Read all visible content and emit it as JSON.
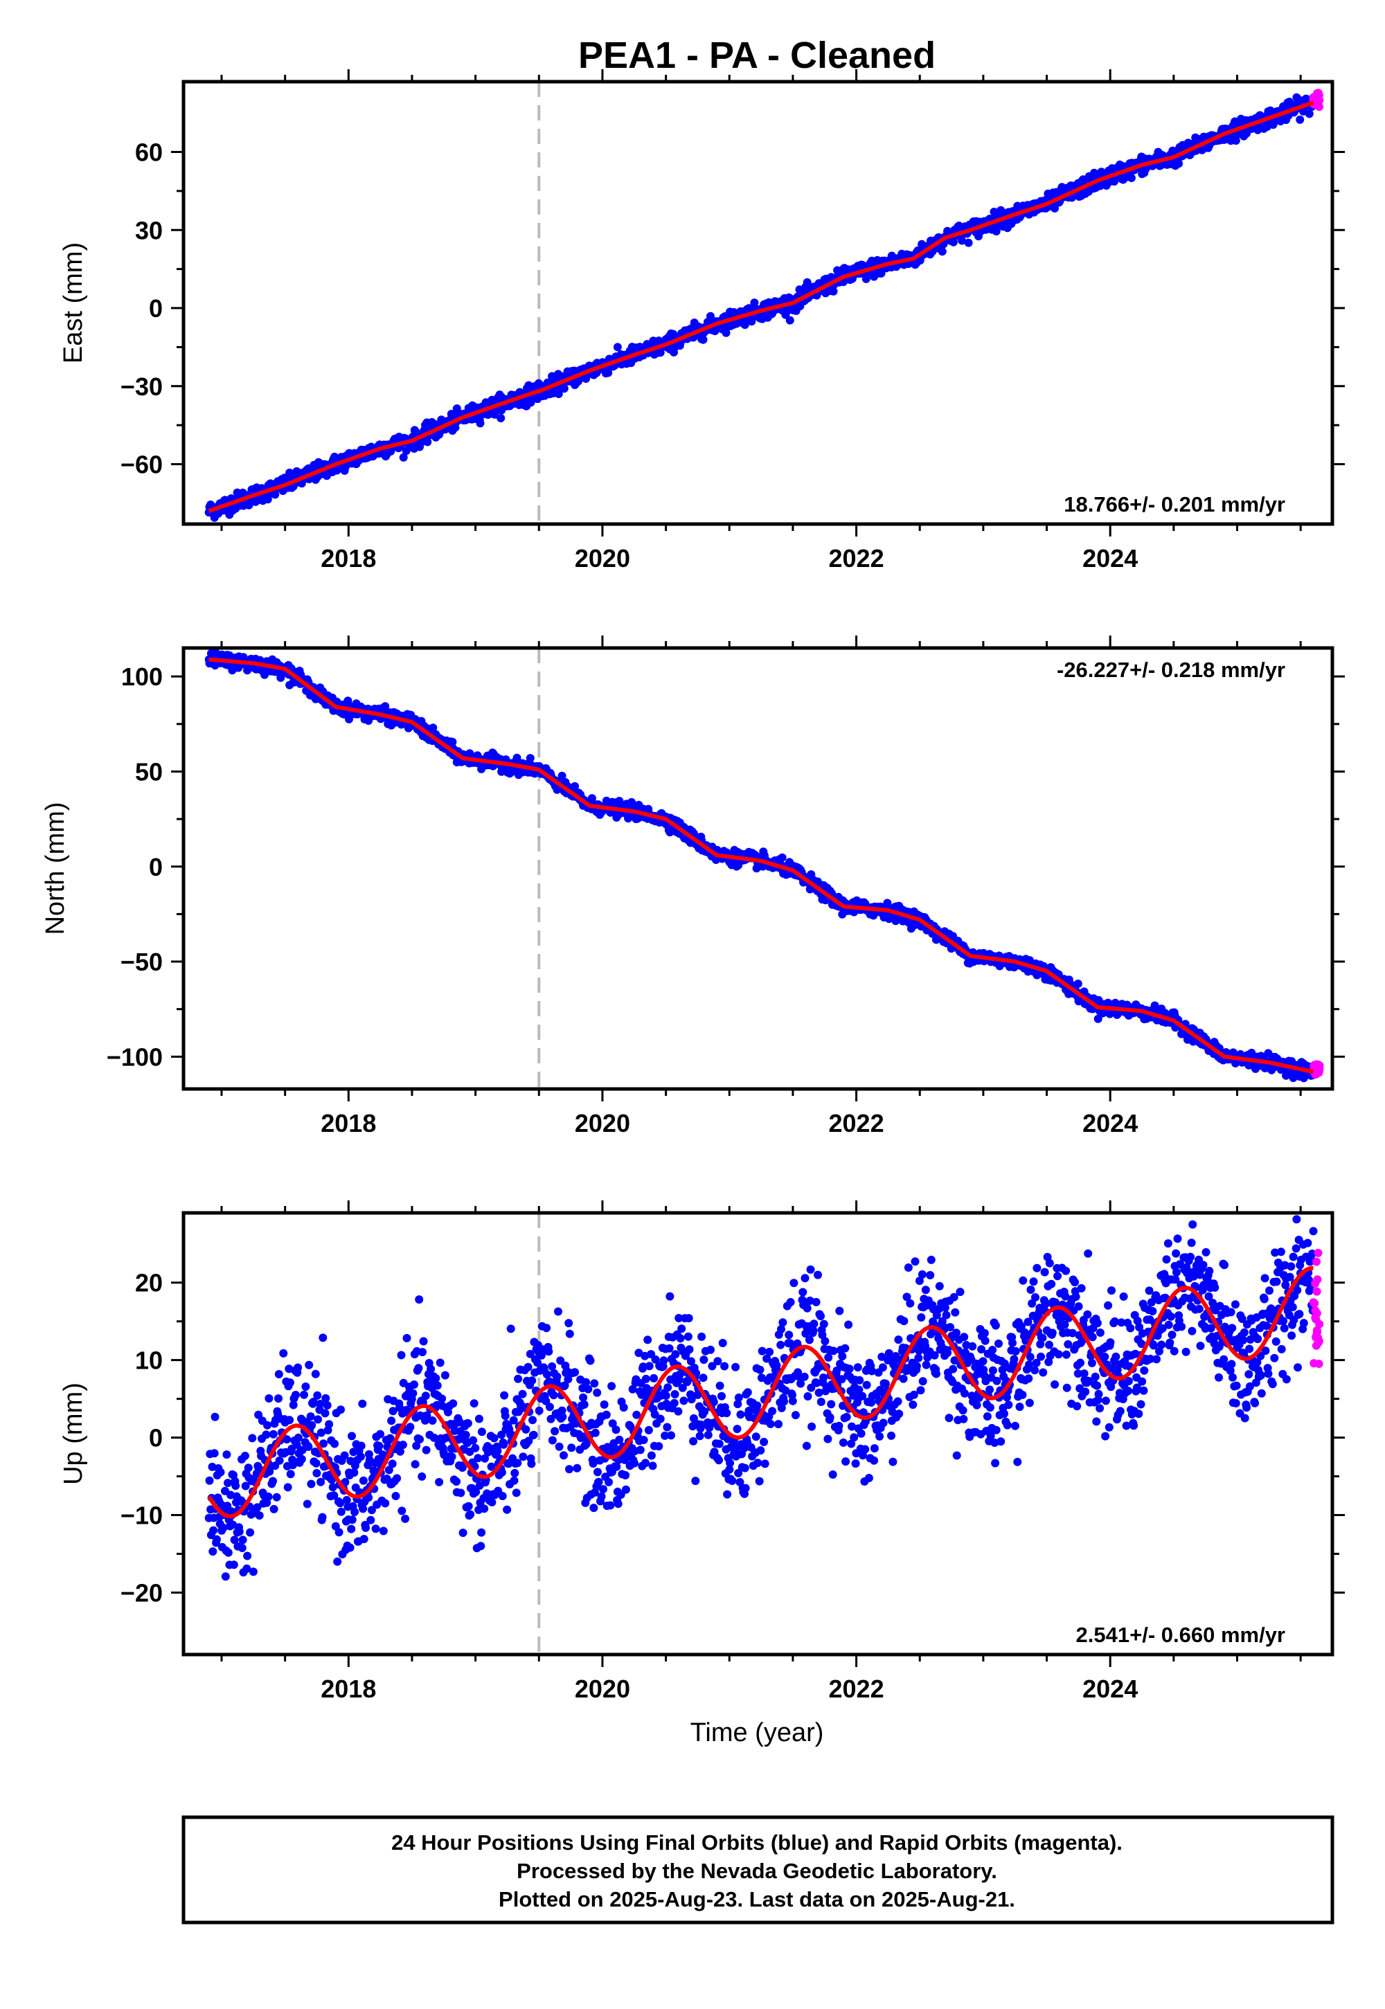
{
  "title": "PEA1  - PA - Cleaned",
  "xlabel": "Time (year)",
  "footer": {
    "line1": "24 Hour Positions Using Final Orbits (blue) and Rapid Orbits (magenta).",
    "line2": "Processed by the Nevada Geodetic Laboratory.",
    "line3": "Plotted on 2025-Aug-23. Last data on 2025-Aug-21."
  },
  "colors": {
    "final": "#0000ff",
    "rapid": "#ff00ff",
    "model": "#ff0000",
    "event_line": "#bbbbbb"
  },
  "chart_data": [
    {
      "type": "scatter",
      "id": "east",
      "ylabel": "East (mm)",
      "rate": "18.766+/- 0.201 mm/yr",
      "xlim": [
        2016.7,
        2025.75
      ],
      "ylim": [
        -83,
        87
      ],
      "xticks": [
        2018,
        2020,
        2022,
        2024
      ],
      "yticks": [
        -60,
        -30,
        0,
        30,
        60
      ],
      "event_x": 2019.5,
      "model": {
        "x": [
          2016.9,
          2017.25,
          2017.5,
          2017.9,
          2018.25,
          2018.5,
          2018.9,
          2019.25,
          2019.49,
          2019.5,
          2019.9,
          2020.25,
          2020.5,
          2020.9,
          2021.25,
          2021.5,
          2021.9,
          2022.25,
          2022.45,
          2022.7,
          2022.9,
          2023.25,
          2023.5,
          2023.9,
          2024.25,
          2024.5,
          2024.9,
          2025.25,
          2025.6
        ],
        "y": [
          -78,
          -72,
          -68,
          -60,
          -54,
          -51,
          -42,
          -36,
          -32,
          -32,
          -24,
          -18,
          -14,
          -6,
          -1,
          2,
          12,
          17,
          19,
          27,
          30,
          36,
          40,
          49,
          55,
          58,
          67,
          73,
          79
        ]
      },
      "final": {
        "x_start": 2016.9,
        "x_end": 2025.6,
        "noise_mm": 1.6
      },
      "rapid": {
        "x_start": 2025.6,
        "x_end": 2025.65,
        "y_min": 77,
        "y_max": 83
      }
    },
    {
      "type": "scatter",
      "id": "north",
      "ylabel": "North (mm)",
      "rate": "-26.227+/- 0.218 mm/yr",
      "xlim": [
        2016.7,
        2025.75
      ],
      "ylim": [
        -117,
        115
      ],
      "xticks": [
        2018,
        2020,
        2022,
        2024
      ],
      "yticks": [
        -100,
        -50,
        0,
        50,
        100
      ],
      "event_x": 2019.5,
      "model": {
        "x": [
          2016.9,
          2017.25,
          2017.5,
          2017.9,
          2018.25,
          2018.5,
          2018.9,
          2019.25,
          2019.5,
          2019.9,
          2020.25,
          2020.5,
          2020.9,
          2021.25,
          2021.5,
          2021.9,
          2022.25,
          2022.5,
          2022.9,
          2023.25,
          2023.5,
          2023.9,
          2024.25,
          2024.5,
          2024.9,
          2025.25,
          2025.6
        ],
        "y": [
          109,
          107,
          104,
          84,
          80,
          76,
          57,
          54,
          51,
          32,
          29,
          25,
          6,
          3,
          -2,
          -21,
          -23,
          -28,
          -47,
          -50,
          -55,
          -74,
          -76,
          -81,
          -100,
          -103,
          -108
        ]
      },
      "final": {
        "x_start": 2016.9,
        "x_end": 2025.6,
        "noise_mm": 1.8
      },
      "rapid": {
        "x_start": 2025.6,
        "x_end": 2025.65,
        "y_min": -110,
        "y_max": -104
      }
    },
    {
      "type": "scatter",
      "id": "up",
      "ylabel": "Up (mm)",
      "rate": "2.541+/- 0.660 mm/yr",
      "xlim": [
        2016.7,
        2025.75
      ],
      "ylim": [
        -28,
        29
      ],
      "xticks": [
        2018,
        2020,
        2022,
        2024
      ],
      "yticks": [
        -20,
        -10,
        0,
        10,
        20
      ],
      "event_x": 2019.5,
      "model": {
        "trend": 2.541,
        "offset": -5.4,
        "amplitude": 5.2,
        "phase": 0.33,
        "x_start": 2016.9,
        "x_end": 2025.6
      },
      "final": {
        "x_start": 2016.9,
        "x_end": 2025.6,
        "noise_mm": 4.2
      },
      "rapid": {
        "x_start": 2025.6,
        "x_end": 2025.65,
        "y_min": 7,
        "y_max": 24
      }
    }
  ]
}
